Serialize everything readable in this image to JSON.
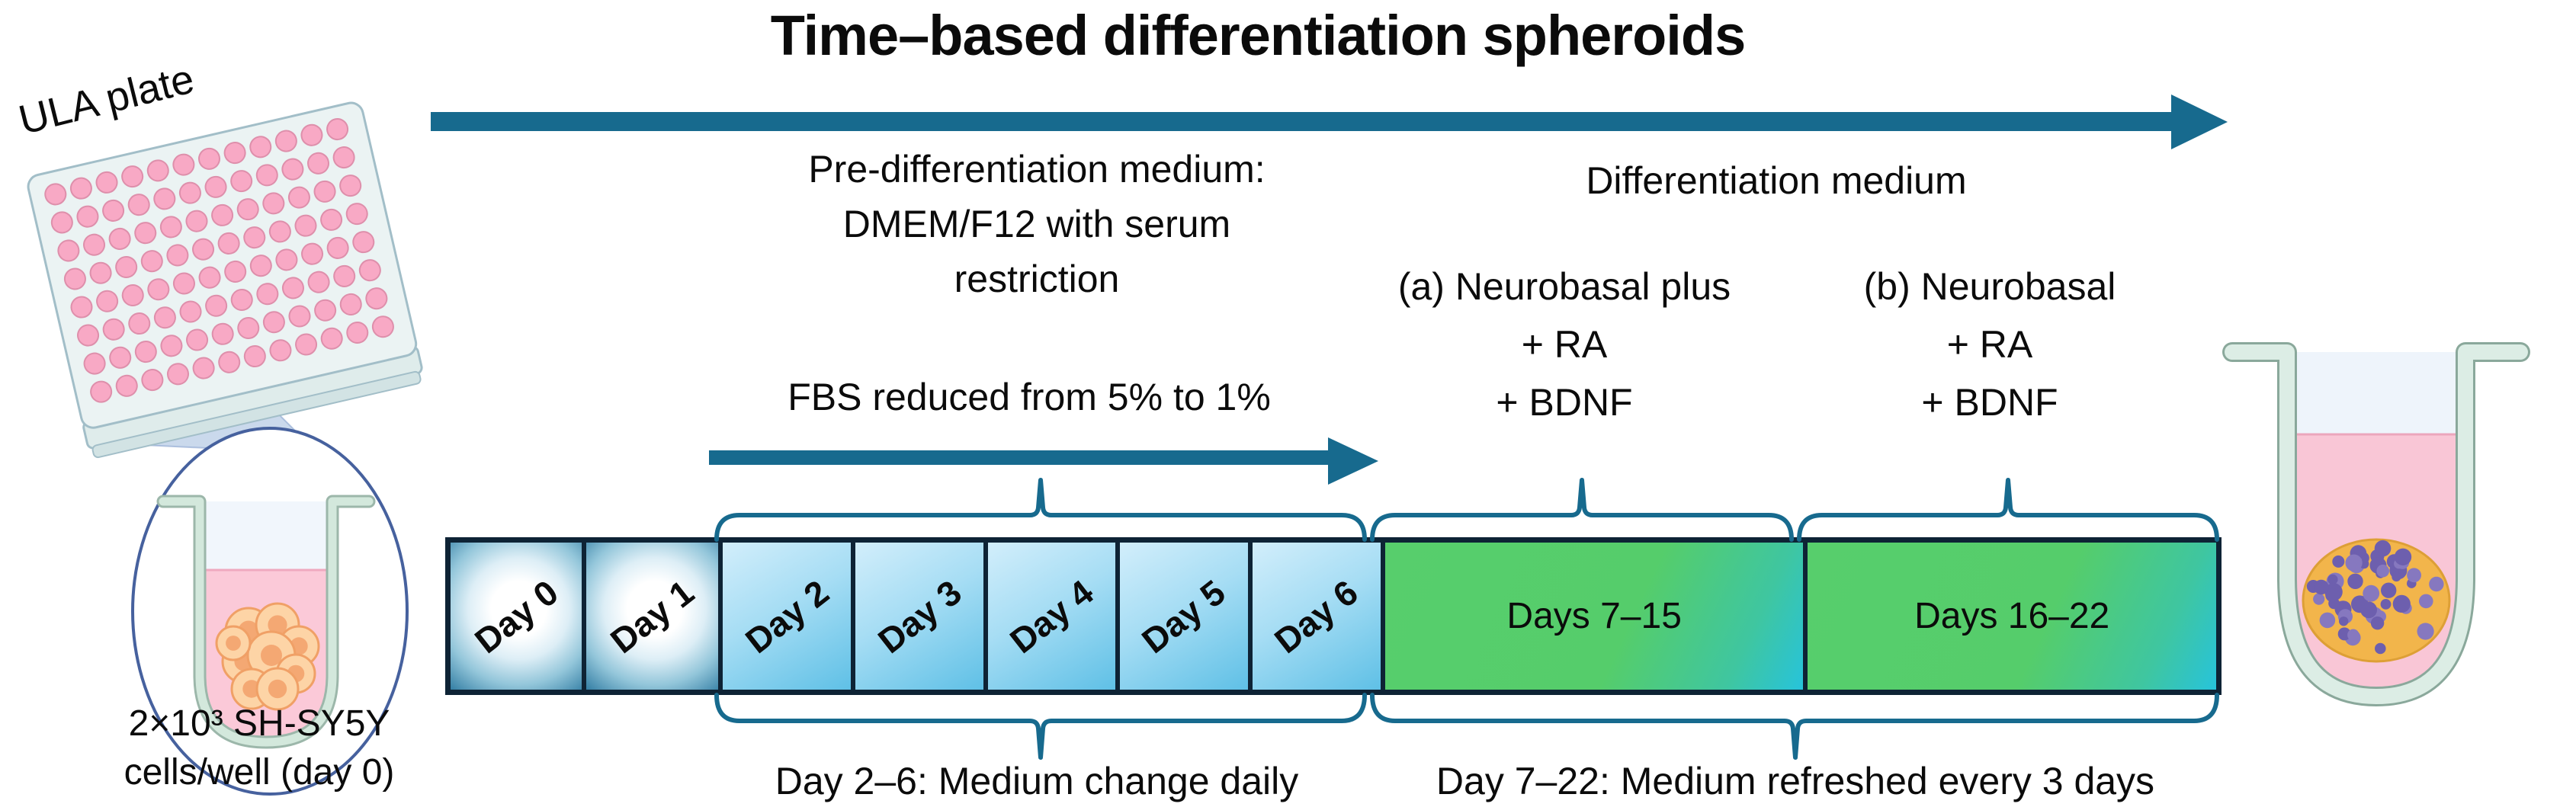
{
  "title": "Time–based differentiation spheroids",
  "seeding": {
    "plate_label": "ULA plate",
    "caption_line1": "2×10³ SH-SY5Y",
    "caption_line2": "cells/well (day 0)"
  },
  "pre_differentiation": {
    "heading_line1": "Pre-differentiation medium:",
    "heading_line2": "DMEM/F12 with serum",
    "heading_line3": "restriction",
    "fbs_note": "FBS reduced from 5% to 1%"
  },
  "differentiation": {
    "heading": "Differentiation medium",
    "option_a_line1": "(a) Neurobasal plus",
    "option_a_line2": "+ RA",
    "option_a_line3": "+ BDNF",
    "option_b_line1": "(b) Neurobasal",
    "option_b_line2": "+ RA",
    "option_b_line3": "+ BDNF"
  },
  "timeline": {
    "days": [
      "Day 0",
      "Day 1",
      "Day 2",
      "Day 3",
      "Day 4",
      "Day 5",
      "Day 6"
    ],
    "phases": [
      "Days 7–15",
      "Days 16–22"
    ]
  },
  "notes": {
    "daily_change": "Day 2–6: Medium change daily",
    "refresh": "Day 7–22: Medium refreshed every 3 days"
  },
  "colors": {
    "accent_teal": "#176a8e",
    "border_navy": "#0e2335",
    "phase_green": "#57ce6c",
    "phase_cyan": "#27c3db",
    "day_blue": "#5fc0e6",
    "medium_pink": "#f9c6d6",
    "well_mint": "#dcede5",
    "spheroid_orange": "#f2b54b",
    "spheroid_purple": "#8678bf",
    "magnifier_blue": "#46619e",
    "cells_orange": "#fdd4a6"
  }
}
